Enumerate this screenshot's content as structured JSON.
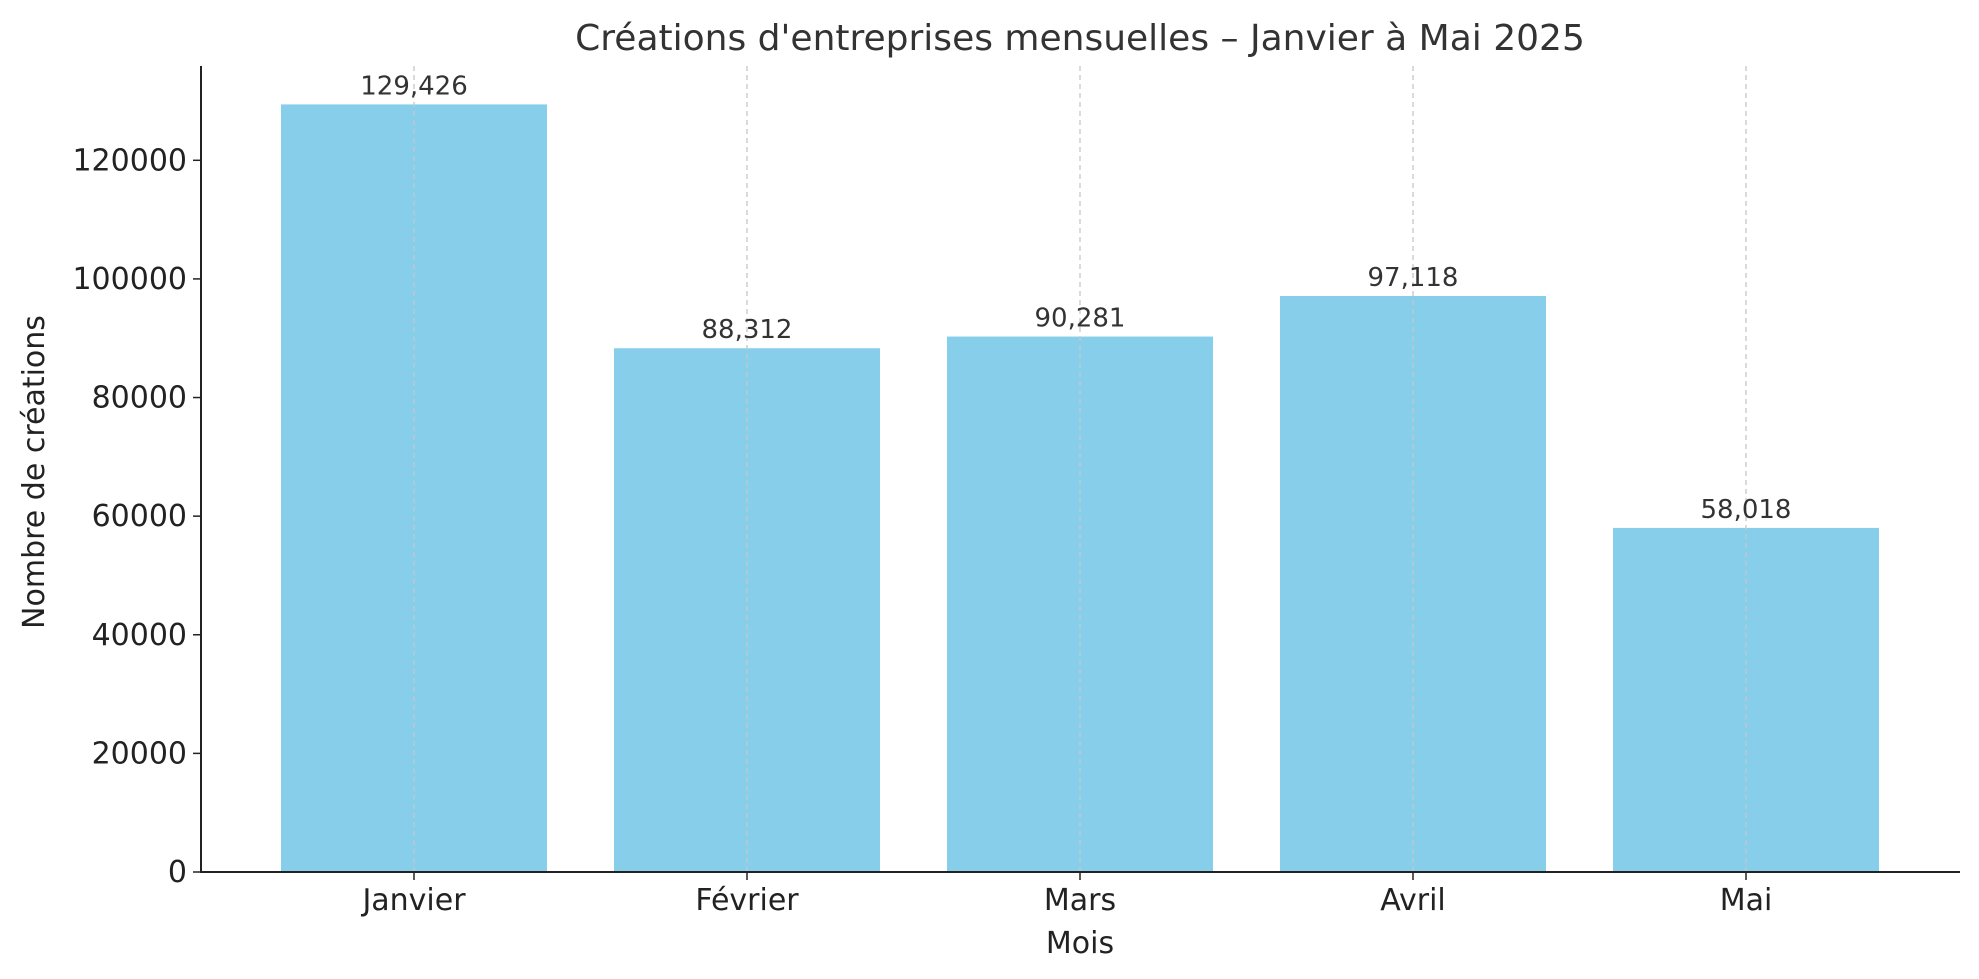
{
  "chart_data": {
    "type": "bar",
    "title": "Créations d'entreprises mensuelles – Janvier à Mai 2025",
    "xlabel": "Mois",
    "ylabel": "Nombre de créations",
    "categories": [
      "Janvier",
      "Février",
      "Mars",
      "Avril",
      "Mai"
    ],
    "values": [
      129426,
      88312,
      90281,
      97118,
      58018
    ],
    "data_labels": [
      "129,426",
      "88,312",
      "90,281",
      "97,118",
      "58,018"
    ],
    "ylim": [
      0,
      135900
    ],
    "yticks": [
      0,
      20000,
      40000,
      60000,
      80000,
      100000,
      120000
    ],
    "ytick_labels": [
      "0",
      "20000",
      "40000",
      "60000",
      "80000",
      "100000",
      "120000"
    ],
    "grid": "vertical dashed at category centers",
    "bar_color": "#87CEEB",
    "grid_color": "#c8c8c8",
    "axis_color": "#222222"
  }
}
